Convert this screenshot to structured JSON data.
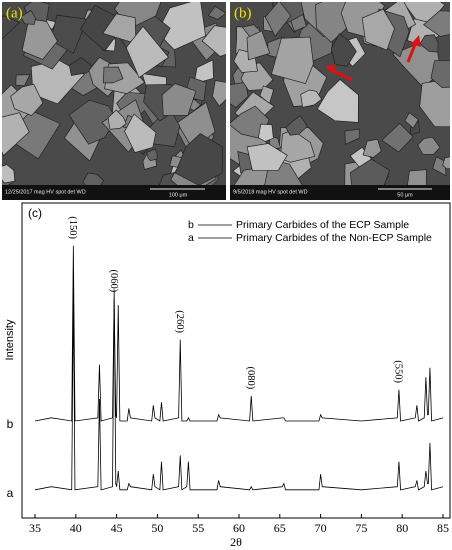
{
  "panels": [
    {
      "label": "(a)",
      "info": "12/25/2017 mag HV spot det WD",
      "scale": "100 μm"
    },
    {
      "label": "(b)",
      "info": "9/5/2018 mag HV spot det WD",
      "scale": "50 μm"
    }
  ],
  "chart_data": {
    "type": "line",
    "panel_label": "(c)",
    "xlabel": "2θ",
    "ylabel": "Intensity",
    "x": [
      35,
      37,
      39.5,
      39.7,
      39.9,
      42.7,
      42.9,
      43.1,
      44.5,
      44.7,
      44.9,
      45.0,
      45.2,
      45.4,
      46.3,
      46.5,
      46.7,
      49.3,
      49.5,
      49.7,
      50.3,
      50.5,
      50.7,
      52.6,
      52.8,
      53.0,
      53.6,
      53.8,
      54.0,
      57.3,
      57.5,
      57.7,
      61.3,
      61.5,
      61.7,
      65.3,
      65.5,
      65.7,
      69.8,
      70.0,
      70.2,
      75,
      79.4,
      79.6,
      79.8,
      81.6,
      81.8,
      82.0,
      82.7,
      82.9,
      83.1,
      83.2,
      83.4,
      83.6,
      85
    ],
    "series": [
      {
        "name": "Primary Carbides of the Non-ECP Sample",
        "label": "a",
        "color": "#000000",
        "values": [
          9,
          10,
          9,
          72,
          9,
          10,
          38,
          9,
          10,
          73,
          11,
          10,
          15,
          9,
          9,
          11,
          10,
          9,
          14,
          10,
          9,
          18,
          9,
          10,
          20,
          9,
          10,
          18,
          9,
          9,
          12,
          10,
          9,
          10,
          9,
          10,
          11,
          9,
          9,
          14,
          10,
          9,
          10,
          18,
          9,
          10,
          12,
          9,
          10,
          15,
          11,
          11,
          24,
          9,
          10
        ]
      },
      {
        "name": "Primary Carbides of the ECP Sample",
        "label": "b",
        "color": "#000000",
        "values": [
          31,
          32,
          31,
          87,
          31,
          32,
          49,
          31,
          32,
          70,
          33,
          32,
          68,
          31,
          31,
          35,
          32,
          31,
          36,
          32,
          31,
          37,
          31,
          32,
          57,
          31,
          31,
          32,
          31,
          31,
          33,
          32,
          31,
          39,
          31,
          32,
          32,
          31,
          31,
          33,
          32,
          31,
          32,
          41,
          31,
          32,
          36,
          31,
          32,
          45,
          33,
          33,
          48,
          31,
          32
        ]
      }
    ],
    "annotations": [
      {
        "text": "(150)",
        "x": 39.7
      },
      {
        "text": "(060)",
        "x": 44.7
      },
      {
        "text": "(260)",
        "x": 52.8
      },
      {
        "text": "(080)",
        "x": 61.5
      },
      {
        "text": "(550)",
        "x": 79.6
      }
    ],
    "xlim": [
      35,
      85
    ],
    "xticks": [
      35,
      40,
      45,
      50,
      55,
      60,
      65,
      70,
      75,
      80,
      85
    ],
    "ylim": [
      0,
      100
    ]
  }
}
